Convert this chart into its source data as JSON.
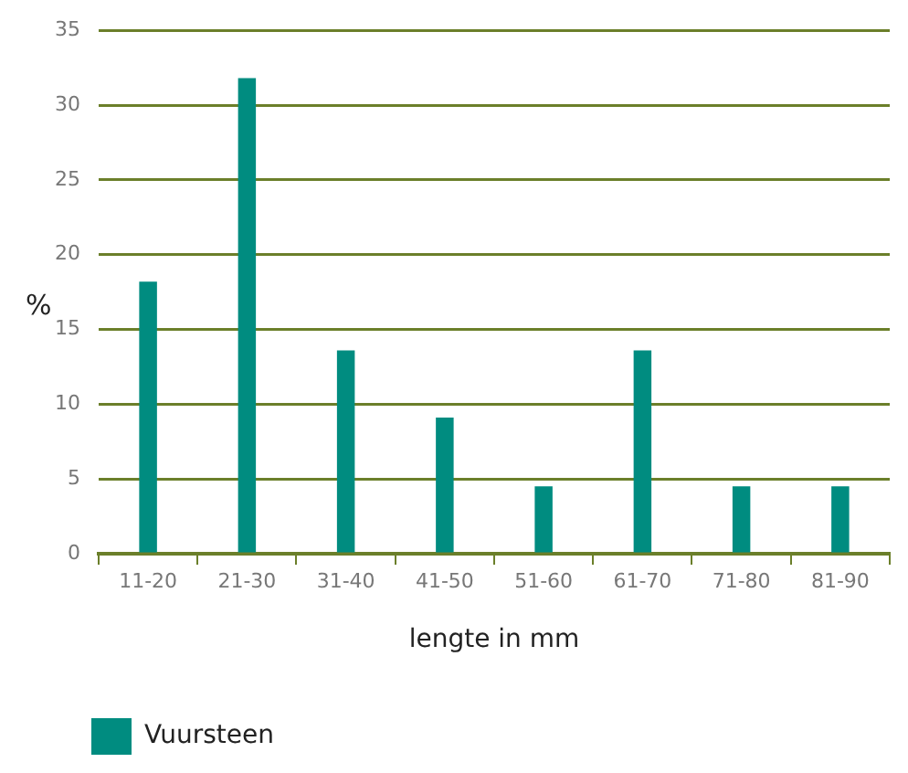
{
  "chart_data": {
    "type": "bar",
    "xlabel": "lengte in mm",
    "ylabel": "%",
    "categories": [
      "11-20",
      "21-30",
      "31-40",
      "41-50",
      "51-60",
      "61-70",
      "71-80",
      "81-90"
    ],
    "series": [
      {
        "name": "Vuursteen",
        "color": "#008c80",
        "values": [
          18.2,
          31.8,
          13.6,
          9.1,
          4.5,
          13.6,
          4.5,
          4.5
        ]
      }
    ],
    "ylim": [
      0,
      35
    ],
    "yticks": [
      0,
      5,
      10,
      15,
      20,
      25,
      30,
      35
    ],
    "grid": "y",
    "legend": "bottom left"
  }
}
